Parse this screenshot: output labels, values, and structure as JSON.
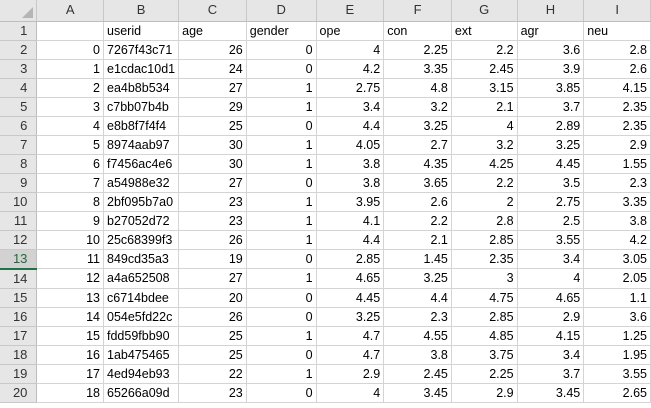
{
  "columns": [
    "A",
    "B",
    "C",
    "D",
    "E",
    "F",
    "G",
    "H",
    "I"
  ],
  "active_row": "13",
  "rows": [
    {
      "n": "1",
      "c": [
        "",
        "userid",
        "age",
        "gender",
        "ope",
        "con",
        "ext",
        "agr",
        "neu"
      ]
    },
    {
      "n": "2",
      "c": [
        "0",
        "7267f43c71",
        "26",
        "0",
        "4",
        "2.25",
        "2.2",
        "3.6",
        "2.8"
      ]
    },
    {
      "n": "3",
      "c": [
        "1",
        "e1cdac10d1",
        "24",
        "0",
        "4.2",
        "3.35",
        "2.45",
        "3.9",
        "2.6"
      ]
    },
    {
      "n": "4",
      "c": [
        "2",
        "ea4b8b534",
        "27",
        "1",
        "2.75",
        "4.8",
        "3.15",
        "3.85",
        "4.15"
      ]
    },
    {
      "n": "5",
      "c": [
        "3",
        "c7bb07b4b",
        "29",
        "1",
        "3.4",
        "3.2",
        "2.1",
        "3.7",
        "2.35"
      ]
    },
    {
      "n": "6",
      "c": [
        "4",
        "e8b8f7f4f4",
        "25",
        "0",
        "4.4",
        "3.25",
        "4",
        "2.89",
        "2.35"
      ]
    },
    {
      "n": "7",
      "c": [
        "5",
        "8974aab97",
        "30",
        "1",
        "4.05",
        "2.7",
        "3.2",
        "3.25",
        "2.9"
      ]
    },
    {
      "n": "8",
      "c": [
        "6",
        "f7456ac4e6",
        "30",
        "1",
        "3.8",
        "4.35",
        "4.25",
        "4.45",
        "1.55"
      ]
    },
    {
      "n": "9",
      "c": [
        "7",
        "a54988e32",
        "27",
        "0",
        "3.8",
        "3.65",
        "2.2",
        "3.5",
        "2.3"
      ]
    },
    {
      "n": "10",
      "c": [
        "8",
        "2bf095b7a0",
        "23",
        "1",
        "3.95",
        "2.6",
        "2",
        "2.75",
        "3.35"
      ]
    },
    {
      "n": "11",
      "c": [
        "9",
        "b27052d72",
        "23",
        "1",
        "4.1",
        "2.2",
        "2.8",
        "2.5",
        "3.8"
      ]
    },
    {
      "n": "12",
      "c": [
        "10",
        "25c68399f3",
        "26",
        "1",
        "4.4",
        "2.1",
        "2.85",
        "3.55",
        "4.2"
      ]
    },
    {
      "n": "13",
      "c": [
        "11",
        "849cd35a3",
        "19",
        "0",
        "2.85",
        "1.45",
        "2.35",
        "3.4",
        "3.05"
      ]
    },
    {
      "n": "14",
      "c": [
        "12",
        "a4a652508",
        "27",
        "1",
        "4.65",
        "3.25",
        "3",
        "4",
        "2.05"
      ]
    },
    {
      "n": "15",
      "c": [
        "13",
        "c6714bdee",
        "20",
        "0",
        "4.45",
        "4.4",
        "4.75",
        "4.65",
        "1.1"
      ]
    },
    {
      "n": "16",
      "c": [
        "14",
        "054e5fd22c",
        "26",
        "0",
        "3.25",
        "2.3",
        "2.85",
        "2.9",
        "3.6"
      ]
    },
    {
      "n": "17",
      "c": [
        "15",
        "fdd59fbb90",
        "25",
        "1",
        "4.7",
        "4.55",
        "4.85",
        "4.15",
        "1.25"
      ]
    },
    {
      "n": "18",
      "c": [
        "16",
        "1ab475465",
        "25",
        "0",
        "4.7",
        "3.8",
        "3.75",
        "3.4",
        "1.95"
      ]
    },
    {
      "n": "19",
      "c": [
        "17",
        "4ed94eb93",
        "22",
        "1",
        "2.9",
        "2.45",
        "2.25",
        "3.7",
        "3.55"
      ]
    },
    {
      "n": "20",
      "c": [
        "18",
        "65266a09d",
        "23",
        "0",
        "4",
        "3.45",
        "2.9",
        "3.45",
        "2.65"
      ]
    }
  ]
}
